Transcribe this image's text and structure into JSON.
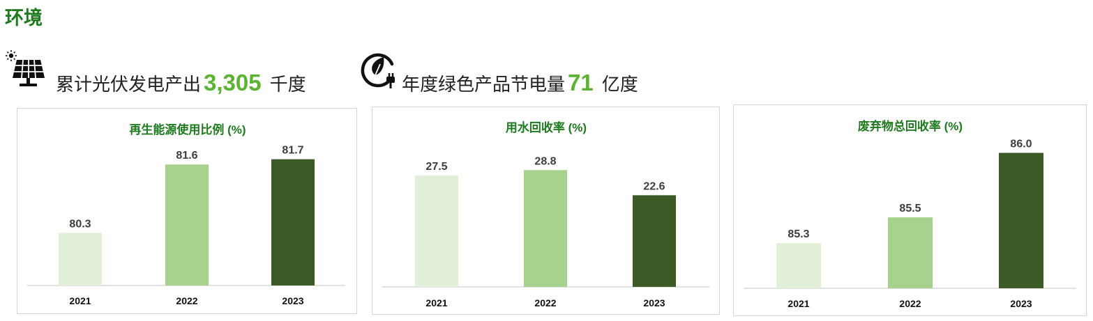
{
  "section_title": "环境",
  "stats": [
    {
      "label": "累计光伏发电产出",
      "value": "3,305",
      "unit": "千度",
      "icon": "solar-panel-icon"
    },
    {
      "label": "年度绿色产品节电量",
      "value": "71",
      "unit": "亿度",
      "icon": "green-energy-plug-icon"
    }
  ],
  "colors": {
    "title_green": "#1e7a1e",
    "stat_number_green": "#5cb233",
    "series": [
      "#e2efd9",
      "#a9d18e",
      "#3b5a25"
    ]
  },
  "chart_data": [
    {
      "type": "bar",
      "title": "再生能源使用比例 (%)",
      "categories": [
        "2021",
        "2022",
        "2023"
      ],
      "values": [
        80.3,
        81.6,
        81.7
      ],
      "value_labels": [
        "80.3",
        "81.6",
        "81.7"
      ],
      "xlabel": "",
      "ylabel": "",
      "ylim": [
        79.3,
        82.0
      ],
      "grid": false,
      "legend": "none"
    },
    {
      "type": "bar",
      "title": "用水回收率 (%)",
      "categories": [
        "2021",
        "2022",
        "2023"
      ],
      "values": [
        27.5,
        28.8,
        22.6
      ],
      "value_labels": [
        "27.5",
        "28.8",
        "22.6"
      ],
      "xlabel": "",
      "ylabel": "",
      "ylim": [
        0,
        34
      ],
      "grid": false,
      "legend": "none"
    },
    {
      "type": "bar",
      "title": "废弃物总回收率 (%)",
      "categories": [
        "2021",
        "2022",
        "2023"
      ],
      "values": [
        85.3,
        85.5,
        86.0
      ],
      "value_labels": [
        "85.3",
        "85.5",
        "86.0"
      ],
      "xlabel": "",
      "ylabel": "",
      "ylim": [
        84.95,
        86.1
      ],
      "grid": false,
      "legend": "none"
    }
  ]
}
